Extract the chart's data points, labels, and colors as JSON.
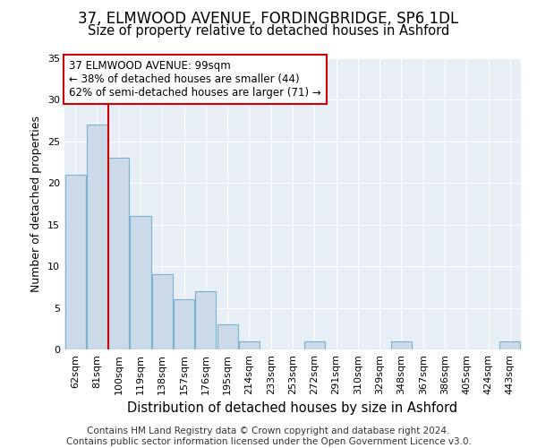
{
  "title": "37, ELMWOOD AVENUE, FORDINGBRIDGE, SP6 1DL",
  "subtitle": "Size of property relative to detached houses in Ashford",
  "xlabel": "Distribution of detached houses by size in Ashford",
  "ylabel": "Number of detached properties",
  "categories": [
    "62sqm",
    "81sqm",
    "100sqm",
    "119sqm",
    "138sqm",
    "157sqm",
    "176sqm",
    "195sqm",
    "214sqm",
    "233sqm",
    "253sqm",
    "272sqm",
    "291sqm",
    "310sqm",
    "329sqm",
    "348sqm",
    "367sqm",
    "386sqm",
    "405sqm",
    "424sqm",
    "443sqm"
  ],
  "values": [
    21,
    27,
    23,
    16,
    9,
    6,
    7,
    3,
    1,
    0,
    0,
    1,
    0,
    0,
    0,
    1,
    0,
    0,
    0,
    0,
    1
  ],
  "bar_color": "#ccd9e8",
  "bar_edgecolor": "#7ab3cc",
  "vline_x": 1.5,
  "vline_color": "#cc0000",
  "annotation_text": "37 ELMWOOD AVENUE: 99sqm\n← 38% of detached houses are smaller (44)\n62% of semi-detached houses are larger (71) →",
  "annotation_box_color": "#ffffff",
  "annotation_box_edgecolor": "#cc0000",
  "ylim": [
    0,
    35
  ],
  "yticks": [
    0,
    5,
    10,
    15,
    20,
    25,
    30,
    35
  ],
  "fig_background_color": "#ffffff",
  "plot_background_color": "#e8eef5",
  "grid_color": "#ffffff",
  "footnote": "Contains HM Land Registry data © Crown copyright and database right 2024.\nContains public sector information licensed under the Open Government Licence v3.0.",
  "title_fontsize": 12,
  "subtitle_fontsize": 10.5,
  "xlabel_fontsize": 10.5,
  "ylabel_fontsize": 9,
  "tick_fontsize": 8,
  "footnote_fontsize": 7.5
}
